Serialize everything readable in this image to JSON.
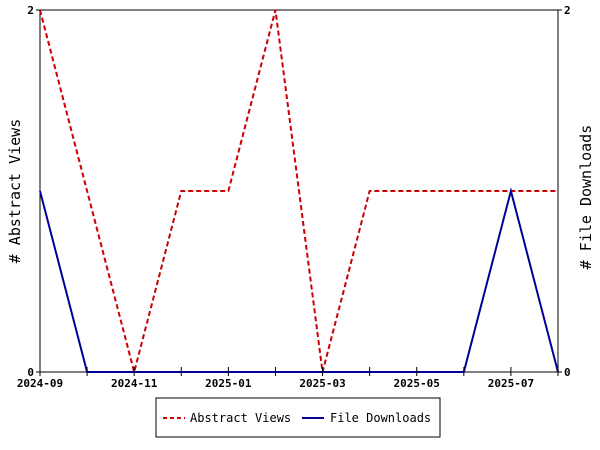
{
  "chart_data": {
    "type": "line",
    "x": [
      "2024-09",
      "2024-10",
      "2024-11",
      "2024-12",
      "2025-01",
      "2025-02",
      "2025-03",
      "2025-04",
      "2025-05",
      "2025-06",
      "2025-07",
      "2025-08"
    ],
    "x_tick_labels": [
      "2024-09",
      "2024-11",
      "2025-01",
      "2025-03",
      "2025-05",
      "2025-07"
    ],
    "series": [
      {
        "name": "Abstract Views",
        "axis": "left",
        "color": "#cc0000",
        "dash": "dashed",
        "values": [
          2,
          1,
          0,
          1,
          1,
          2,
          0,
          1,
          1,
          1,
          1,
          1
        ]
      },
      {
        "name": "File Downloads",
        "axis": "right",
        "color": "#000099",
        "dash": "solid",
        "values": [
          1,
          0,
          0,
          0,
          0,
          0,
          0,
          0,
          0,
          0,
          1,
          0
        ]
      }
    ],
    "ylabel_left": "# Abstract Views",
    "ylabel_right": "# File Downloads",
    "ylim_left": [
      0,
      2
    ],
    "ylim_right": [
      0,
      2
    ],
    "y_ticks_left": [
      "0",
      "2"
    ],
    "y_ticks_right": [
      "0",
      "2"
    ],
    "grid": false,
    "legend_position": "bottom-center"
  }
}
